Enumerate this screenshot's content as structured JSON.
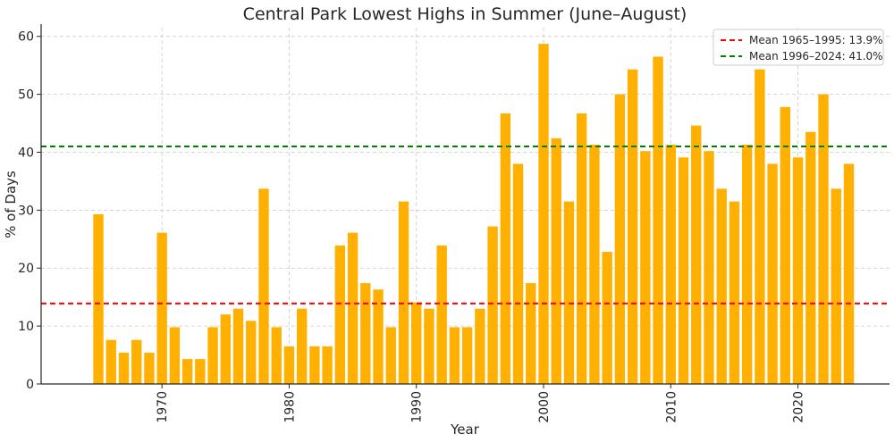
{
  "chart_data": {
    "type": "bar",
    "title": "Central Park Lowest Highs in Summer (June–August)",
    "xlabel": "Year",
    "ylabel": "% of Days",
    "xlim": [
      1960.5,
      2027.2
    ],
    "ylim": [
      0,
      61.5
    ],
    "xticks": [
      1970,
      1980,
      1990,
      2000,
      2010,
      2020
    ],
    "yticks": [
      0,
      10,
      20,
      30,
      40,
      50,
      60
    ],
    "grid": true,
    "legend_position": "top-right",
    "bar_color": "#FFB000",
    "x": [
      1965,
      1966,
      1967,
      1968,
      1969,
      1970,
      1971,
      1972,
      1973,
      1974,
      1975,
      1976,
      1977,
      1978,
      1979,
      1980,
      1981,
      1982,
      1983,
      1984,
      1985,
      1986,
      1987,
      1988,
      1989,
      1990,
      1991,
      1992,
      1993,
      1994,
      1995,
      1996,
      1997,
      1998,
      1999,
      2000,
      2001,
      2002,
      2003,
      2004,
      2005,
      2006,
      2007,
      2008,
      2009,
      2010,
      2011,
      2012,
      2013,
      2014,
      2015,
      2016,
      2017,
      2018,
      2019,
      2020,
      2021,
      2022,
      2023,
      2024
    ],
    "values": [
      29.3,
      7.6,
      5.4,
      7.6,
      5.4,
      26.1,
      9.8,
      4.3,
      4.3,
      9.8,
      12.0,
      13.0,
      10.9,
      33.7,
      9.8,
      6.5,
      13.0,
      6.5,
      6.5,
      23.9,
      26.1,
      17.4,
      16.3,
      9.8,
      31.5,
      14.1,
      13.0,
      23.9,
      9.8,
      9.8,
      13.0,
      27.2,
      46.7,
      38.0,
      17.4,
      58.7,
      42.4,
      31.5,
      46.7,
      41.3,
      22.8,
      50.0,
      54.3,
      40.2,
      56.5,
      41.3,
      39.1,
      44.6,
      40.2,
      33.7,
      31.5,
      41.3,
      54.3,
      38.0,
      47.8,
      39.1,
      43.5,
      50.0,
      33.7,
      38.0
    ],
    "reference_lines": [
      {
        "label": "Mean 1965–1995: 13.9%",
        "value": 13.9,
        "color": "#FF0000"
      },
      {
        "label": "Mean 1996–2024: 41.0%",
        "value": 41.0,
        "color": "#008000"
      }
    ]
  }
}
